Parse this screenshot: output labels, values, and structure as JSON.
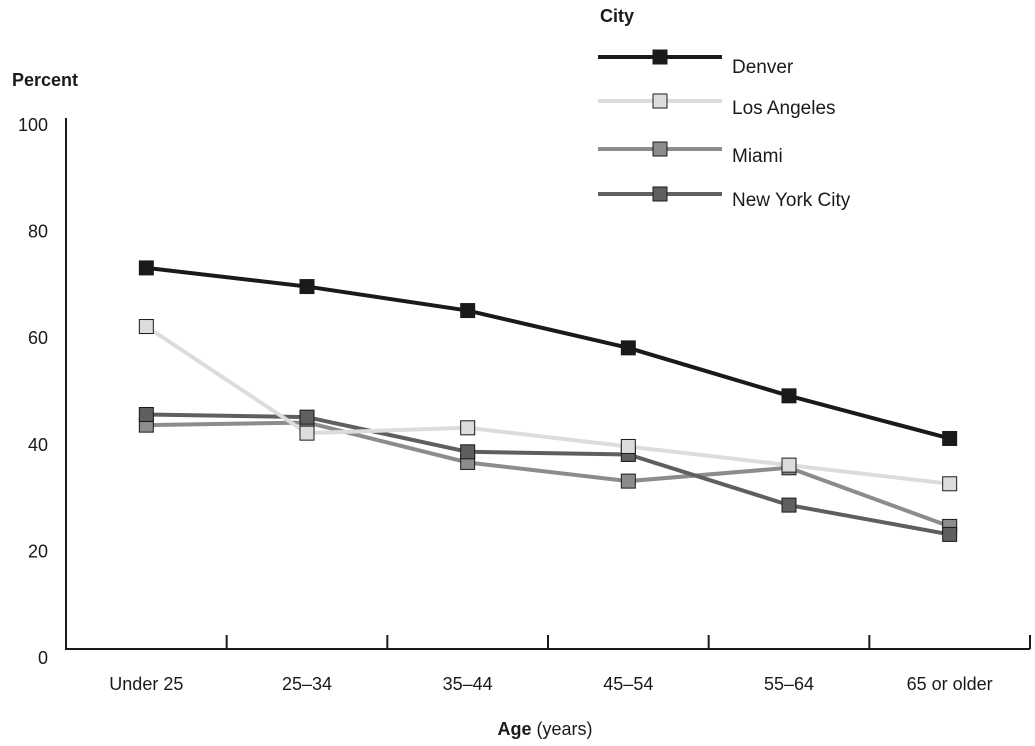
{
  "chart_data": {
    "type": "line",
    "ylabel": "Percent",
    "xlabel_bold": "Age",
    "xlabel_rest": " (years)",
    "legend_title": "City",
    "legend_position": "top-right",
    "ylim": [
      0,
      100
    ],
    "yticks": [
      "0",
      "20",
      "40",
      "60",
      "80",
      "100"
    ],
    "categories": [
      "Under 25",
      "25–34",
      "35–44",
      "45–54",
      "55–64",
      "65 or older"
    ],
    "grid": false,
    "series": [
      {
        "name": "Denver",
        "color": "#1a1a1a",
        "marker_fill": "#1a1a1a",
        "values": [
          73,
          69.5,
          65,
          58,
          49,
          41
        ]
      },
      {
        "name": "Los Angeles",
        "color": "#dcdcdc",
        "marker_fill": "#dcdcdc",
        "values": [
          62,
          42,
          43,
          39.5,
          36,
          32.5
        ]
      },
      {
        "name": "Miami",
        "color": "#8c8c8c",
        "marker_fill": "#8c8c8c",
        "values": [
          43.5,
          44,
          36.5,
          33,
          35.5,
          24.5
        ]
      },
      {
        "name": "New York City",
        "color": "#5f5f5f",
        "marker_fill": "#5f5f5f",
        "values": [
          45.5,
          45,
          38.5,
          38,
          28.5,
          23
        ]
      }
    ]
  }
}
